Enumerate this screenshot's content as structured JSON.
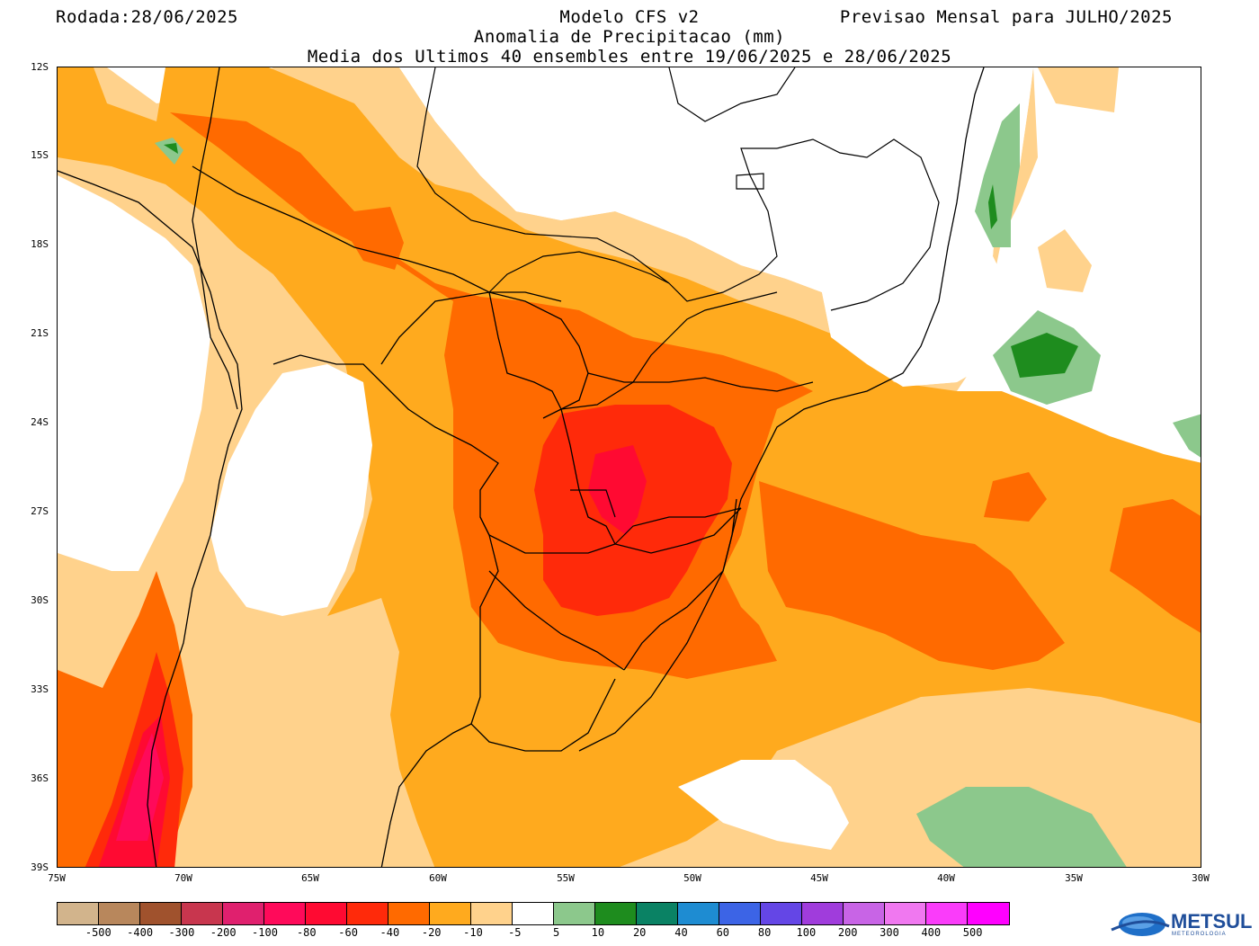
{
  "header": {
    "rodada": "Rodada:28/06/2025",
    "modelo": "Modelo CFS v2",
    "previsao": "Previsao Mensal para JULHO/2025",
    "anomalia": "Anomalia de Precipitacao (mm)",
    "media": "Media dos Ultimos 40 ensembles entre 19/06/2025 e 28/06/2025"
  },
  "axes": {
    "lat_labels": [
      "12S",
      "15S",
      "18S",
      "21S",
      "24S",
      "27S",
      "30S",
      "33S",
      "36S",
      "39S"
    ],
    "lon_labels": [
      "75W",
      "70W",
      "65W",
      "60W",
      "55W",
      "50W",
      "45W",
      "40W",
      "35W",
      "30W"
    ]
  },
  "colorbar": {
    "colors": [
      "#d2b48c",
      "#b8875c",
      "#a0522d",
      "#c8364e",
      "#e0206e",
      "#ff0a5a",
      "#ff0a32",
      "#ff2a0a",
      "#ff6a00",
      "#ffaa1e",
      "#ffd28c",
      "#ffffff",
      "#8cc88c",
      "#1e8c1e",
      "#0a8264",
      "#1e8cd2",
      "#3c64e6",
      "#6446e6",
      "#a03cdc",
      "#c864e6",
      "#f078f0",
      "#fa3cfa",
      "#ff00ff"
    ],
    "labels": [
      "-500",
      "-400",
      "-300",
      "-200",
      "-100",
      "-80",
      "-60",
      "-40",
      "-20",
      "-10",
      "-5",
      "5",
      "10",
      "20",
      "40",
      "60",
      "80",
      "100",
      "200",
      "300",
      "400",
      "500"
    ]
  },
  "logo": {
    "name": "METSUL",
    "subtitle": "METEOROLOGIA"
  }
}
